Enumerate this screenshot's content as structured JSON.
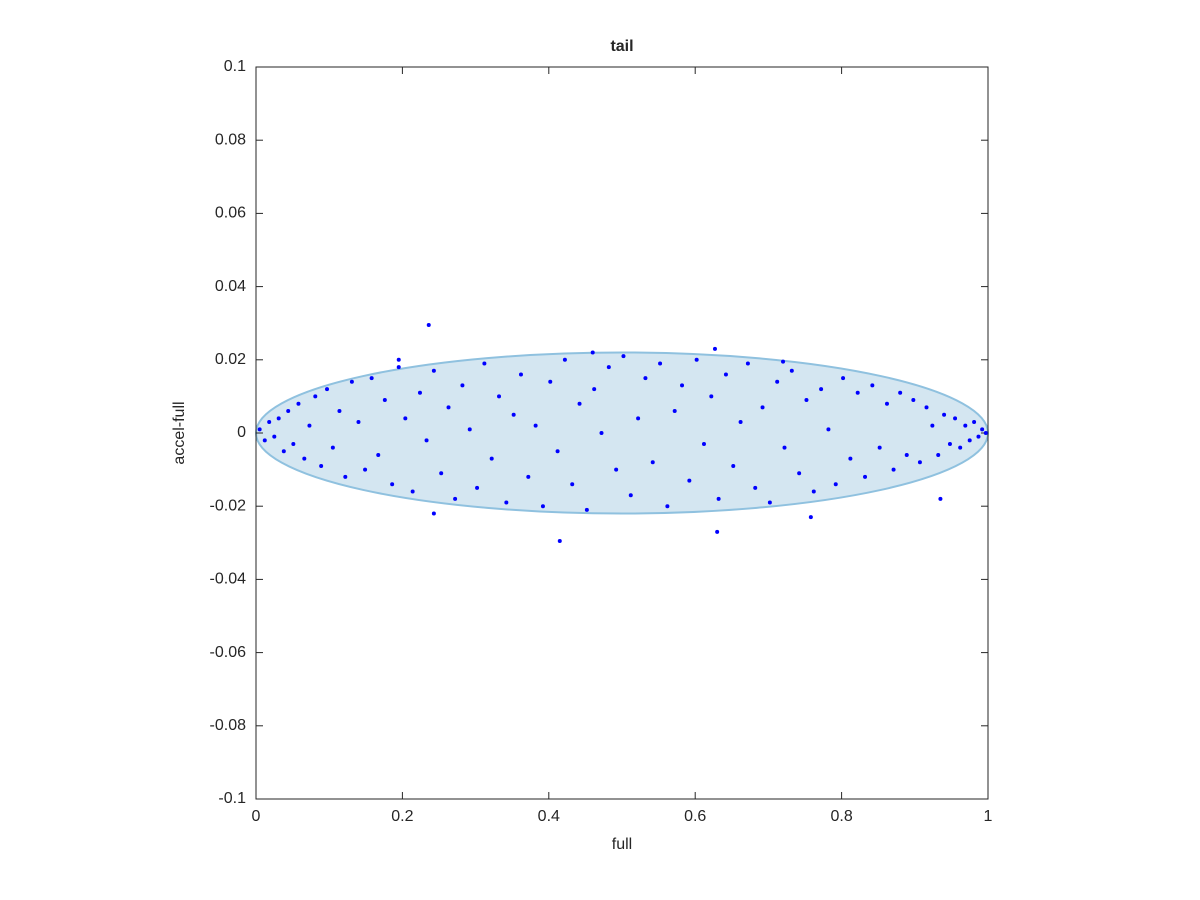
{
  "chart_data": {
    "type": "scatter",
    "title": "tail",
    "xlabel": "full",
    "ylabel": "accel-full",
    "xlim": [
      0,
      1
    ],
    "ylim": [
      -0.1,
      0.1
    ],
    "xticks": [
      0,
      0.2,
      0.4,
      0.6,
      0.8,
      1
    ],
    "yticks": [
      -0.1,
      -0.08,
      -0.06,
      -0.04,
      -0.02,
      0,
      0.02,
      0.04,
      0.06,
      0.08,
      0.1
    ],
    "ellipse": {
      "center_x": 0.5,
      "center_y": 0,
      "rx": 0.5,
      "ry": 0.022,
      "fill": "#d4e6f1",
      "stroke": "#8fc1df"
    },
    "series": [
      {
        "color": "#0000ff",
        "x": [
          0.005,
          0.012,
          0.018,
          0.025,
          0.031,
          0.038,
          0.044,
          0.051,
          0.058,
          0.066,
          0.073,
          0.081,
          0.089,
          0.097,
          0.105,
          0.114,
          0.122,
          0.131,
          0.14,
          0.149,
          0.158,
          0.167,
          0.176,
          0.186,
          0.195,
          0.204,
          0.214,
          0.224,
          0.233,
          0.243,
          0.253,
          0.263,
          0.272,
          0.282,
          0.292,
          0.302,
          0.312,
          0.322,
          0.332,
          0.342,
          0.352,
          0.362,
          0.372,
          0.382,
          0.392,
          0.402,
          0.412,
          0.422,
          0.432,
          0.442,
          0.452,
          0.462,
          0.472,
          0.482,
          0.492,
          0.502,
          0.512,
          0.522,
          0.532,
          0.542,
          0.552,
          0.562,
          0.572,
          0.582,
          0.592,
          0.602,
          0.612,
          0.622,
          0.632,
          0.642,
          0.652,
          0.662,
          0.672,
          0.682,
          0.692,
          0.702,
          0.712,
          0.722,
          0.732,
          0.742,
          0.752,
          0.762,
          0.772,
          0.782,
          0.792,
          0.802,
          0.812,
          0.822,
          0.832,
          0.842,
          0.852,
          0.862,
          0.871,
          0.88,
          0.889,
          0.898,
          0.907,
          0.916,
          0.924,
          0.932,
          0.94,
          0.948,
          0.955,
          0.962,
          0.969,
          0.975,
          0.981,
          0.987,
          0.992,
          0.997,
          0.236,
          0.415,
          0.627,
          0.63,
          0.758,
          0.46,
          0.195,
          0.243,
          0.72,
          0.935
        ],
        "values": [
          0.001,
          -0.002,
          0.003,
          -0.001,
          0.004,
          -0.005,
          0.006,
          -0.003,
          0.008,
          -0.007,
          0.002,
          0.01,
          -0.009,
          0.012,
          -0.004,
          0.006,
          -0.012,
          0.014,
          0.003,
          -0.01,
          0.015,
          -0.006,
          0.009,
          -0.014,
          0.018,
          0.004,
          -0.016,
          0.011,
          -0.002,
          0.017,
          -0.011,
          0.007,
          -0.018,
          0.013,
          0.001,
          -0.015,
          0.019,
          -0.007,
          0.01,
          -0.019,
          0.005,
          0.016,
          -0.012,
          0.002,
          -0.02,
          0.014,
          -0.005,
          0.02,
          -0.014,
          0.008,
          -0.021,
          0.012,
          0.0,
          0.018,
          -0.01,
          0.021,
          -0.017,
          0.004,
          0.015,
          -0.008,
          0.019,
          -0.02,
          0.006,
          0.013,
          -0.013,
          0.02,
          -0.003,
          0.01,
          -0.018,
          0.016,
          -0.009,
          0.003,
          0.019,
          -0.015,
          0.007,
          -0.019,
          0.014,
          -0.004,
          0.017,
          -0.011,
          0.009,
          -0.016,
          0.012,
          0.001,
          -0.014,
          0.015,
          -0.007,
          0.011,
          -0.012,
          0.013,
          -0.004,
          0.008,
          -0.01,
          0.011,
          -0.006,
          0.009,
          -0.008,
          0.007,
          0.002,
          -0.006,
          0.005,
          -0.003,
          0.004,
          -0.004,
          0.002,
          -0.002,
          0.003,
          -0.001,
          0.001,
          0.0,
          0.0295,
          -0.0295,
          0.023,
          -0.027,
          -0.023,
          0.022,
          0.02,
          -0.022,
          0.0195,
          -0.018
        ]
      }
    ]
  }
}
